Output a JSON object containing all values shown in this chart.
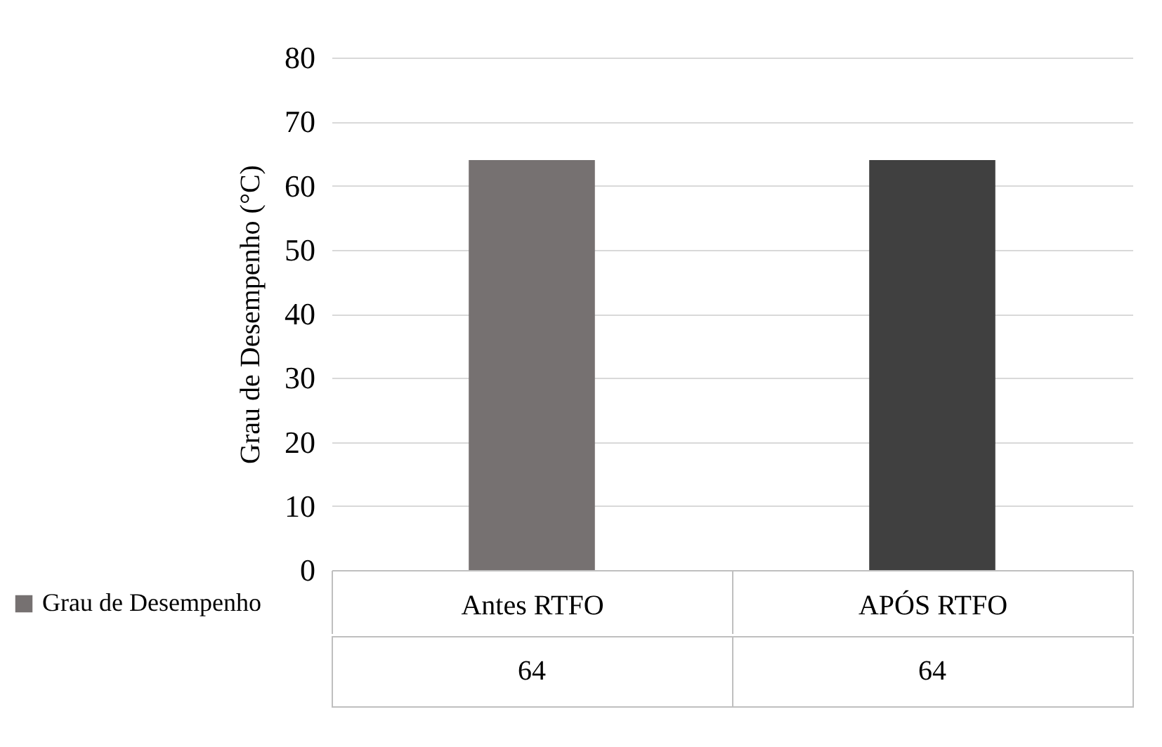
{
  "chart_data": {
    "type": "bar",
    "ylabel": "Grau de Desempenho (°C)",
    "categories": [
      "Antes RTFO",
      "APÓS RTFO"
    ],
    "series": [
      {
        "name": "Grau de Desempenho",
        "color": "#767171",
        "colors": [
          "#767171",
          "#404040"
        ],
        "values": [
          64,
          64
        ]
      }
    ],
    "ylim": [
      0,
      80
    ],
    "yticks": [
      0,
      10,
      20,
      30,
      40,
      50,
      60,
      70,
      80
    ],
    "grid": "y",
    "legend": "bottom",
    "data_labels": true
  }
}
